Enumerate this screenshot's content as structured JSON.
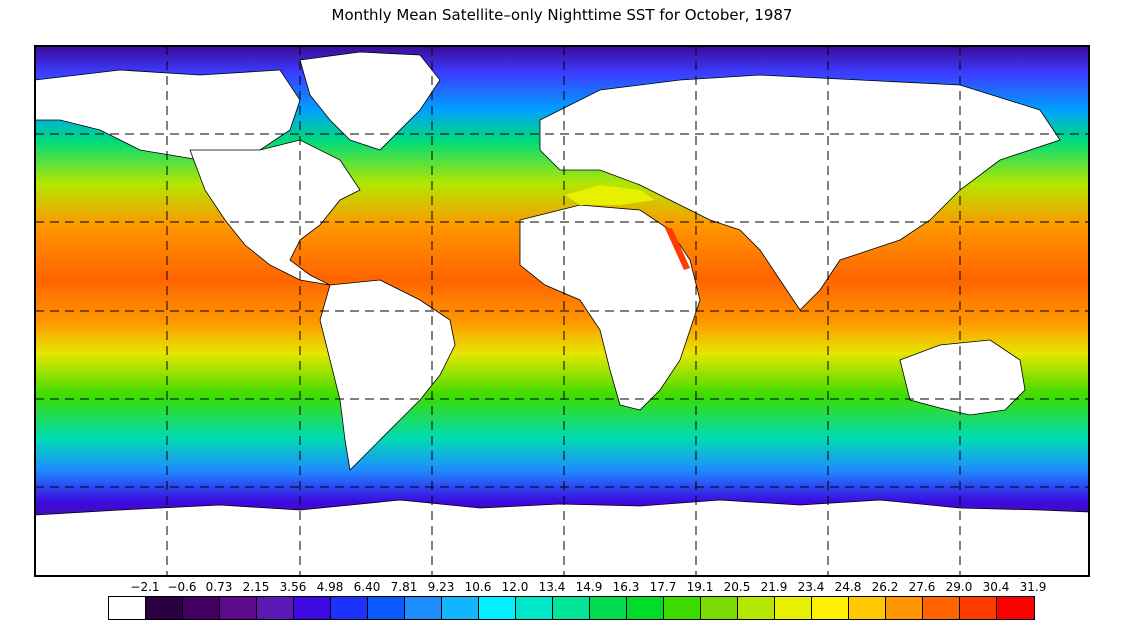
{
  "title": "Monthly Mean Satellite–only Nighttime SST for October, 1987",
  "scale": {
    "labels": [
      "−2.1",
      "−0.6",
      "0.73",
      "2.15",
      "3.56",
      "4.98",
      "6.40",
      "7.81",
      "9.23",
      "10.6",
      "12.0",
      "13.4",
      "14.9",
      "16.3",
      "17.7",
      "19.1",
      "20.5",
      "21.9",
      "23.4",
      "24.8",
      "26.2",
      "27.6",
      "29.0",
      "30.4",
      "31.9"
    ],
    "colors": [
      "#ffffff",
      "#2a0040",
      "#440060",
      "#5a0a8a",
      "#5a18b4",
      "#3c0ae0",
      "#1e32ff",
      "#0a5aff",
      "#1e8cff",
      "#14b4ff",
      "#00f0ff",
      "#00e6c8",
      "#00e696",
      "#00dc50",
      "#00dc28",
      "#3cdc00",
      "#78dc00",
      "#b4e600",
      "#e6f000",
      "#fff000",
      "#ffc800",
      "#ff9600",
      "#ff6400",
      "#ff3c00",
      "#ff0000"
    ]
  }
}
